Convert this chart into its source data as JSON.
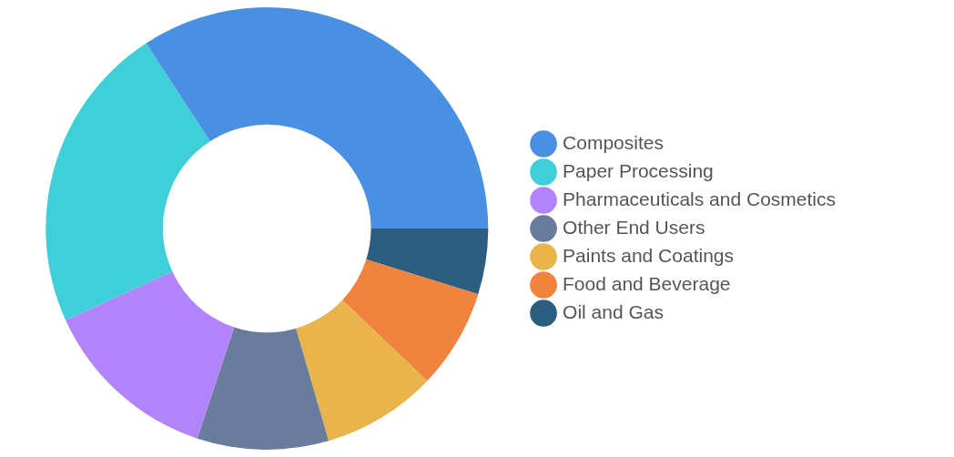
{
  "chart_data": {
    "type": "donut",
    "categories": [
      "Composites",
      "Paper Processing",
      "Pharmaceuticals and Cosmetics",
      "Other End Users",
      "Paints and Coatings",
      "Food and Beverage",
      "Oil and Gas"
    ],
    "values": [
      34.2,
      22.6,
      13.1,
      9.6,
      8.4,
      7.3,
      4.8
    ],
    "colors": [
      "#4a90e2",
      "#3ecfd9",
      "#b185f9",
      "#6a7c9c",
      "#e9b44c",
      "#f0843f",
      "#2d5e80"
    ],
    "legend": "right"
  }
}
